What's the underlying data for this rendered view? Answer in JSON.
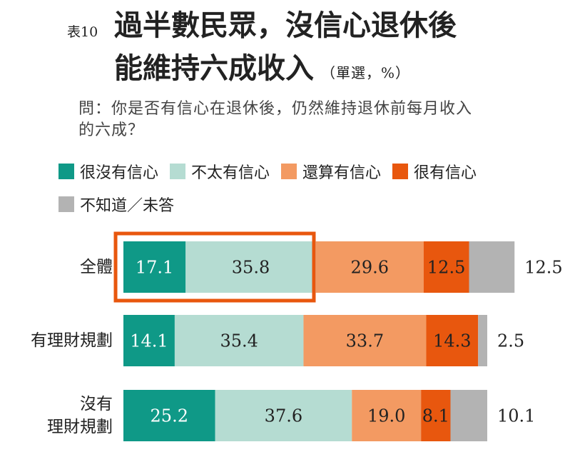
{
  "chart_data": {
    "type": "stacked_barh",
    "table_no": "表10",
    "title": "過半數民眾，沒信心退休後\n能維持六成收入",
    "note": "（單選，%）",
    "question": "問：你是否有信心在退休後，仍然維持退休前每月收入\n的六成？",
    "categories": [
      "全體",
      "有理財規劃",
      "沒有\n理財規劃"
    ],
    "series": [
      {
        "name": "很沒有信心",
        "color": "#0f9987",
        "label_color": "#ffffff",
        "values": [
          17.1,
          14.1,
          25.2
        ]
      },
      {
        "name": "不太有信心",
        "color": "#b5dcd2",
        "label_color": "#222222",
        "values": [
          35.8,
          35.4,
          37.6
        ]
      },
      {
        "name": "還算有信心",
        "color": "#f39a62",
        "label_color": "#222222",
        "values": [
          29.6,
          33.7,
          19.0
        ],
        "value_labels": [
          "29.6",
          "33.7",
          "19.0"
        ]
      },
      {
        "name": "很有信心",
        "color": "#e8570e",
        "label_color": "#222222",
        "values": [
          12.5,
          14.3,
          8.1
        ]
      },
      {
        "name": "不知道／未答",
        "color": "#b3b3b3",
        "label_color": "#222222",
        "label_position": "outside",
        "values": [
          12.5,
          2.5,
          10.1
        ]
      }
    ]
  }
}
